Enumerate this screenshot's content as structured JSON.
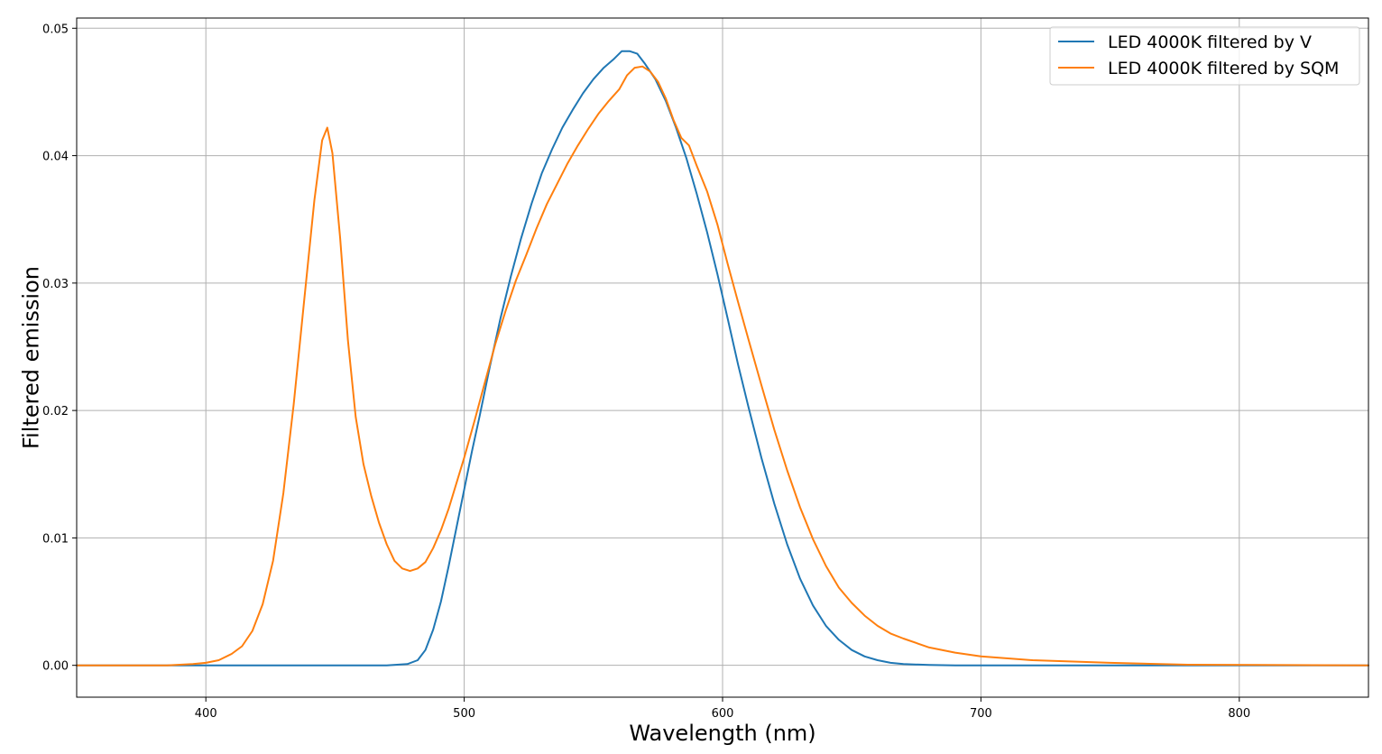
{
  "chart_data": {
    "type": "line",
    "title": "",
    "xlabel": "Wavelength (nm)",
    "ylabel": "Filtered emission",
    "xlim": [
      350,
      850
    ],
    "ylim": [
      -0.0025,
      0.0508
    ],
    "x_ticks": [
      400,
      500,
      600,
      700,
      800
    ],
    "x_tick_labels": [
      "400",
      "500",
      "600",
      "700",
      "800"
    ],
    "y_ticks": [
      0.0,
      0.01,
      0.02,
      0.03,
      0.04,
      0.05
    ],
    "y_tick_labels": [
      "0.00",
      "0.01",
      "0.02",
      "0.03",
      "0.04",
      "0.05"
    ],
    "grid": true,
    "legend_position": "top-right",
    "series": [
      {
        "name": "LED 4000K filtered by V",
        "color": "#1f77b4",
        "x": [
          350,
          470,
          478,
          482,
          485,
          488,
          491,
          494,
          497,
          500,
          503,
          506,
          510,
          514,
          518,
          522,
          526,
          530,
          534,
          538,
          542,
          546,
          550,
          554,
          558,
          561,
          564,
          567,
          570,
          574,
          578,
          582,
          586,
          590,
          594,
          598,
          602,
          606,
          610,
          615,
          620,
          625,
          630,
          635,
          640,
          645,
          650,
          655,
          660,
          665,
          670,
          680,
          690,
          700,
          720,
          750,
          800,
          850
        ],
        "values": [
          0.0,
          0.0,
          0.0001,
          0.0004,
          0.0012,
          0.0028,
          0.005,
          0.0078,
          0.0108,
          0.0138,
          0.0168,
          0.0196,
          0.0235,
          0.0272,
          0.0305,
          0.0335,
          0.0362,
          0.0386,
          0.0405,
          0.0422,
          0.0436,
          0.0449,
          0.046,
          0.0469,
          0.0476,
          0.0482,
          0.0482,
          0.048,
          0.0472,
          0.046,
          0.0443,
          0.0422,
          0.0398,
          0.037,
          0.034,
          0.0307,
          0.0272,
          0.0236,
          0.0203,
          0.0163,
          0.0127,
          0.0095,
          0.0068,
          0.0047,
          0.0031,
          0.002,
          0.0012,
          0.0007,
          0.0004,
          0.0002,
          0.0001,
          3e-05,
          0.0,
          0.0,
          0.0,
          0.0,
          0.0,
          0.0
        ]
      },
      {
        "name": "LED 4000K filtered by SQM",
        "color": "#ff7f0e",
        "x": [
          350,
          385,
          395,
          400,
          405,
          410,
          414,
          418,
          422,
          426,
          430,
          434,
          438,
          442,
          445,
          447,
          449,
          452,
          455,
          458,
          461,
          464,
          467,
          470,
          473,
          476,
          479,
          482,
          485,
          488,
          491,
          494,
          497,
          500,
          504,
          508,
          512,
          516,
          520,
          524,
          528,
          532,
          536,
          540,
          544,
          548,
          552,
          556,
          560,
          563,
          566,
          569,
          572,
          575,
          578,
          581,
          584,
          587,
          590,
          594,
          598,
          602,
          606,
          610,
          615,
          620,
          625,
          630,
          635,
          640,
          645,
          650,
          655,
          660,
          665,
          670,
          680,
          690,
          700,
          720,
          750,
          780,
          850
        ],
        "values": [
          0.0,
          0.0,
          0.0001,
          0.0002,
          0.0004,
          0.0009,
          0.0015,
          0.0027,
          0.0048,
          0.0082,
          0.0135,
          0.0205,
          0.0285,
          0.0365,
          0.0412,
          0.0422,
          0.0402,
          0.0335,
          0.0255,
          0.0195,
          0.0158,
          0.0133,
          0.0112,
          0.0095,
          0.0082,
          0.0076,
          0.0074,
          0.0076,
          0.0081,
          0.0092,
          0.0106,
          0.0123,
          0.0143,
          0.0163,
          0.0192,
          0.0222,
          0.0252,
          0.0278,
          0.0302,
          0.0322,
          0.0343,
          0.0362,
          0.0378,
          0.0394,
          0.0408,
          0.0421,
          0.0433,
          0.0443,
          0.0452,
          0.0463,
          0.0469,
          0.047,
          0.0466,
          0.0458,
          0.0445,
          0.0428,
          0.0414,
          0.0408,
          0.0392,
          0.0372,
          0.0346,
          0.0315,
          0.0285,
          0.0256,
          0.022,
          0.0185,
          0.0153,
          0.0124,
          0.0099,
          0.0078,
          0.0061,
          0.0049,
          0.0039,
          0.0031,
          0.0025,
          0.0021,
          0.0014,
          0.001,
          0.0007,
          0.0004,
          0.0002,
          5e-05,
          0.0
        ]
      }
    ]
  }
}
